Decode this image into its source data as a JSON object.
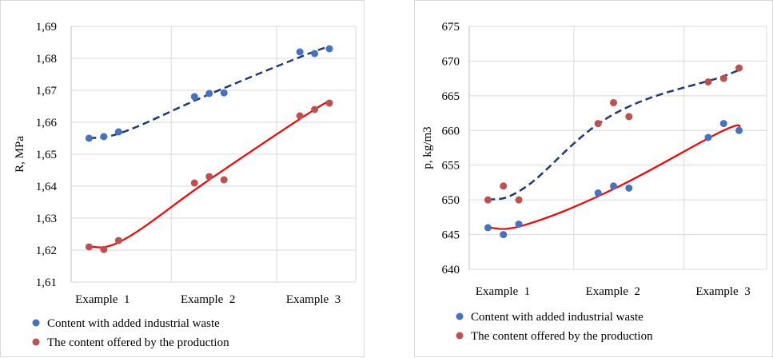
{
  "chart_data": [
    {
      "type": "scatter",
      "title": "",
      "xlabel": "",
      "ylabel": "R, MPa",
      "categories": [
        "Example  1",
        "Example  2",
        "Example  3"
      ],
      "y_ticks": [
        "1,61",
        "1,62",
        "1,63",
        "1,64",
        "1,65",
        "1,66",
        "1,67",
        "1,68",
        "1,69"
      ],
      "ylim": [
        1.61,
        1.69
      ],
      "grid": true,
      "legend_position": "bottom",
      "series": [
        {
          "name": "Content with added industrial waste",
          "color": "#4472c4",
          "trendline": {
            "style": "dashed",
            "color": "#1f3a7a"
          },
          "points": [
            [
              0.72,
              1.655
            ],
            [
              0.86,
              1.6555
            ],
            [
              1.0,
              1.657
            ],
            [
              1.72,
              1.668
            ],
            [
              1.86,
              1.669
            ],
            [
              2.0,
              1.6692
            ],
            [
              2.72,
              1.682
            ],
            [
              2.86,
              1.6815
            ],
            [
              3.0,
              1.683
            ]
          ]
        },
        {
          "name": "The content offered by the production",
          "color": "#c0504d",
          "trendline": {
            "style": "solid",
            "color": "#ff0000"
          },
          "points": [
            [
              0.72,
              1.621
            ],
            [
              0.86,
              1.6202
            ],
            [
              1.0,
              1.623
            ],
            [
              1.72,
              1.641
            ],
            [
              1.86,
              1.643
            ],
            [
              2.0,
              1.642
            ],
            [
              2.72,
              1.662
            ],
            [
              2.86,
              1.664
            ],
            [
              3.0,
              1.666
            ]
          ]
        }
      ]
    },
    {
      "type": "scatter",
      "title": "",
      "xlabel": "",
      "ylabel": "p, kg/m3",
      "categories": [
        "Example  1",
        "Example  2",
        "Example  3"
      ],
      "y_ticks": [
        "640",
        "645",
        "650",
        "655",
        "660",
        "665",
        "670",
        "675"
      ],
      "ylim": [
        640,
        675
      ],
      "grid": true,
      "legend_position": "bottom",
      "series": [
        {
          "name": "Content with added industrial waste",
          "color": "#4472c4",
          "trendline": {
            "style": "solid",
            "color": "#ff0000"
          },
          "points": [
            [
              0.72,
              646
            ],
            [
              0.86,
              645
            ],
            [
              1.0,
              646.5
            ],
            [
              1.72,
              651
            ],
            [
              1.86,
              652
            ],
            [
              2.0,
              651.7
            ],
            [
              2.72,
              659
            ],
            [
              2.86,
              661
            ],
            [
              3.0,
              660
            ]
          ]
        },
        {
          "name": "The content offered by the production",
          "color": "#c0504d",
          "trendline": {
            "style": "dashed",
            "color": "#1f3a7a"
          },
          "points": [
            [
              0.72,
              650
            ],
            [
              0.86,
              652
            ],
            [
              1.0,
              650
            ],
            [
              1.72,
              661
            ],
            [
              1.86,
              664
            ],
            [
              2.0,
              662
            ],
            [
              2.72,
              667
            ],
            [
              2.86,
              667.5
            ],
            [
              3.0,
              669
            ]
          ]
        }
      ]
    }
  ]
}
